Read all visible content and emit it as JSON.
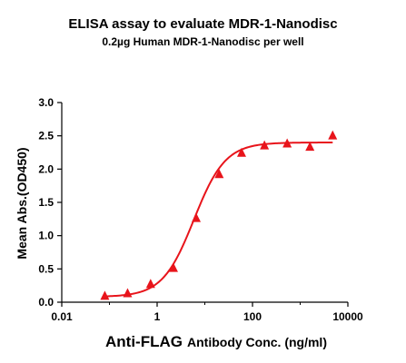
{
  "chart_data": {
    "type": "scatter",
    "title": "ELISA assay to evaluate MDR-1-Nanodisc",
    "subtitle": "0.2µg Human MDR-1-Nanodisc per well",
    "xlabel_bold": "Anti-FLAG",
    "xlabel_rest": "Antibody Conc. (ng/ml)",
    "ylabel": "Mean Abs.(OD450)",
    "x_scale": "log",
    "xlim": [
      0.01,
      10000
    ],
    "ylim": [
      0.0,
      3.0
    ],
    "x_ticks": [
      0.01,
      1,
      100,
      10000
    ],
    "x_tick_labels": [
      "0.01",
      "1",
      "100",
      "10000"
    ],
    "y_ticks": [
      0.0,
      0.5,
      1.0,
      1.5,
      2.0,
      2.5,
      3.0
    ],
    "y_tick_labels": [
      "0.0",
      "0.5",
      "1.0",
      "1.5",
      "2.0",
      "2.5",
      "3.0"
    ],
    "series": [
      {
        "marker": "triangle",
        "color": "#e8141b",
        "x": [
          0.08,
          0.24,
          0.73,
          2.2,
          6.6,
          20,
          59,
          178,
          533,
          1600,
          4800
        ],
        "y": [
          0.09,
          0.13,
          0.27,
          0.51,
          1.26,
          1.92,
          2.24,
          2.35,
          2.38,
          2.33,
          2.5
        ]
      }
    ],
    "fit_curve": {
      "color": "#e8141b",
      "bottom": 0.08,
      "top": 2.4,
      "ec50": 5.9,
      "hill": 1.32
    },
    "grid": false,
    "legend": "none"
  }
}
